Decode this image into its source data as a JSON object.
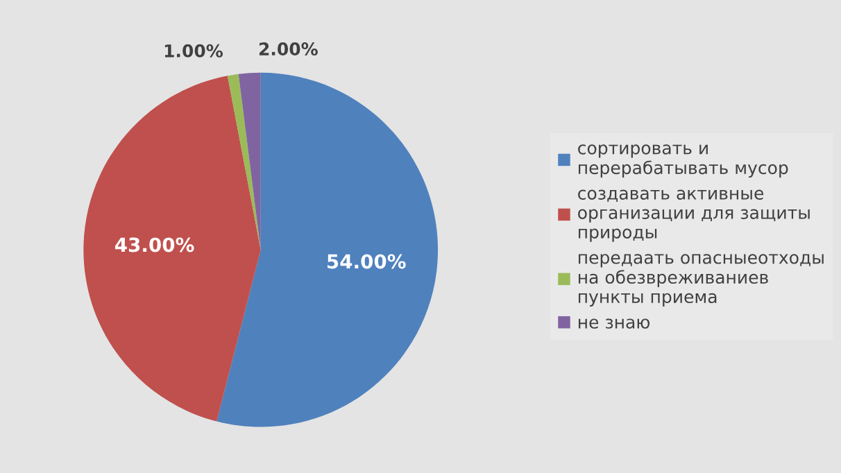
{
  "chart_data": {
    "type": "pie",
    "categories": [
      "сортировать и перерабатывать мусор",
      "создавать активные организации для защиты природы",
      "передаать опасныеотходы на обезвреживаниев пункты приема",
      "не знаю"
    ],
    "values": [
      54,
      43,
      1,
      2
    ],
    "colors": [
      "#4f81bd",
      "#c0504d",
      "#9bbb59",
      "#8064a2"
    ],
    "value_labels": [
      "54.00%",
      "43.00%",
      "1.00%",
      "2.00%"
    ],
    "legend": "right"
  }
}
